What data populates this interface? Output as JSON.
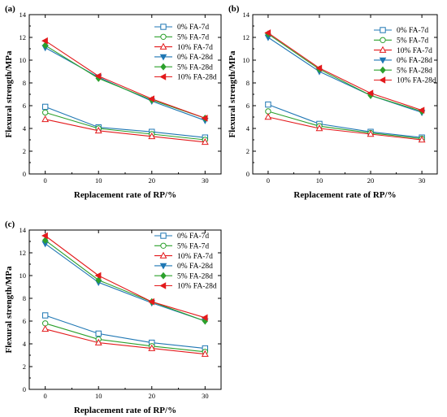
{
  "chart_data": [
    {
      "type": "line",
      "panel_label": "(a)",
      "xlabel": "Replacement rate of RP/%",
      "ylabel": "Flexural strength/MPa",
      "x": [
        0,
        10,
        20,
        30
      ],
      "xlim": [
        -3,
        33
      ],
      "ylim": [
        0,
        14
      ],
      "xticks": [
        "0",
        "10",
        "20",
        "30"
      ],
      "yticks": [
        "0",
        "2",
        "4",
        "6",
        "8",
        "10",
        "12",
        "14"
      ],
      "legend_position": "top-right",
      "series": [
        {
          "name": "0% FA-7d",
          "color": "#1f77b4",
          "marker": "square-open",
          "values": [
            5.9,
            4.1,
            3.7,
            3.2
          ]
        },
        {
          "name": "5% FA-7d",
          "color": "#2ca02c",
          "marker": "circle-open",
          "values": [
            5.4,
            4.0,
            3.5,
            3.0
          ]
        },
        {
          "name": "10% FA-7d",
          "color": "#e31a1c",
          "marker": "triangle-up-open",
          "values": [
            4.8,
            3.8,
            3.3,
            2.8
          ]
        },
        {
          "name": "0% FA-28d",
          "color": "#1f77b4",
          "marker": "triangle-down",
          "values": [
            11.1,
            8.5,
            6.4,
            4.7
          ]
        },
        {
          "name": "5% FA-28d",
          "color": "#2ca02c",
          "marker": "diamond",
          "values": [
            11.3,
            8.4,
            6.5,
            4.9
          ]
        },
        {
          "name": "10% FA-28d",
          "color": "#e31a1c",
          "marker": "triangle-left",
          "values": [
            11.7,
            8.6,
            6.6,
            4.9
          ]
        }
      ]
    },
    {
      "type": "line",
      "panel_label": "(b)",
      "xlabel": "Replacement rate of RP/%",
      "ylabel": "Flexural strength/MPa",
      "x": [
        0,
        10,
        20,
        30
      ],
      "xlim": [
        -3,
        33
      ],
      "ylim": [
        0,
        14
      ],
      "xticks": [
        "0",
        "10",
        "20",
        "30"
      ],
      "yticks": [
        "0",
        "2",
        "4",
        "6",
        "8",
        "10",
        "12",
        "14"
      ],
      "legend_position": "top-right",
      "series": [
        {
          "name": "0% FA-7d",
          "color": "#1f77b4",
          "marker": "square-open",
          "values": [
            6.1,
            4.4,
            3.7,
            3.2
          ]
        },
        {
          "name": "5% FA-7d",
          "color": "#2ca02c",
          "marker": "circle-open",
          "values": [
            5.5,
            4.2,
            3.6,
            3.1
          ]
        },
        {
          "name": "10% FA-7d",
          "color": "#e31a1c",
          "marker": "triangle-up-open",
          "values": [
            5.0,
            4.0,
            3.5,
            3.0
          ]
        },
        {
          "name": "0% FA-28d",
          "color": "#1f77b4",
          "marker": "triangle-down",
          "values": [
            12.0,
            9.0,
            6.9,
            5.4
          ]
        },
        {
          "name": "5% FA-28d",
          "color": "#2ca02c",
          "marker": "diamond",
          "values": [
            12.3,
            9.2,
            6.9,
            5.5
          ]
        },
        {
          "name": "10% FA-28d",
          "color": "#e31a1c",
          "marker": "triangle-left",
          "values": [
            12.4,
            9.3,
            7.1,
            5.6
          ]
        }
      ]
    },
    {
      "type": "line",
      "panel_label": "(c)",
      "xlabel": "Replacement rate of RP/%",
      "ylabel": "Flexural strength/MPa",
      "x": [
        0,
        10,
        20,
        30
      ],
      "xlim": [
        -3,
        33
      ],
      "ylim": [
        0,
        14
      ],
      "xticks": [
        "0",
        "10",
        "20",
        "30"
      ],
      "yticks": [
        "0",
        "2",
        "4",
        "6",
        "8",
        "10",
        "12",
        "14"
      ],
      "legend_position": "top-right",
      "series": [
        {
          "name": "0% FA-7d",
          "color": "#1f77b4",
          "marker": "square-open",
          "values": [
            6.5,
            4.9,
            4.1,
            3.6
          ]
        },
        {
          "name": "5% FA-7d",
          "color": "#2ca02c",
          "marker": "circle-open",
          "values": [
            5.8,
            4.4,
            3.8,
            3.3
          ]
        },
        {
          "name": "10% FA-7d",
          "color": "#e31a1c",
          "marker": "triangle-up-open",
          "values": [
            5.3,
            4.1,
            3.6,
            3.1
          ]
        },
        {
          "name": "0% FA-28d",
          "color": "#1f77b4",
          "marker": "triangle-down",
          "values": [
            12.8,
            9.4,
            7.6,
            6.0
          ]
        },
        {
          "name": "5% FA-28d",
          "color": "#2ca02c",
          "marker": "diamond",
          "values": [
            13.1,
            9.6,
            7.7,
            6.0
          ]
        },
        {
          "name": "10% FA-28d",
          "color": "#e31a1c",
          "marker": "triangle-left",
          "values": [
            13.5,
            10.0,
            7.7,
            6.3
          ]
        }
      ]
    }
  ]
}
